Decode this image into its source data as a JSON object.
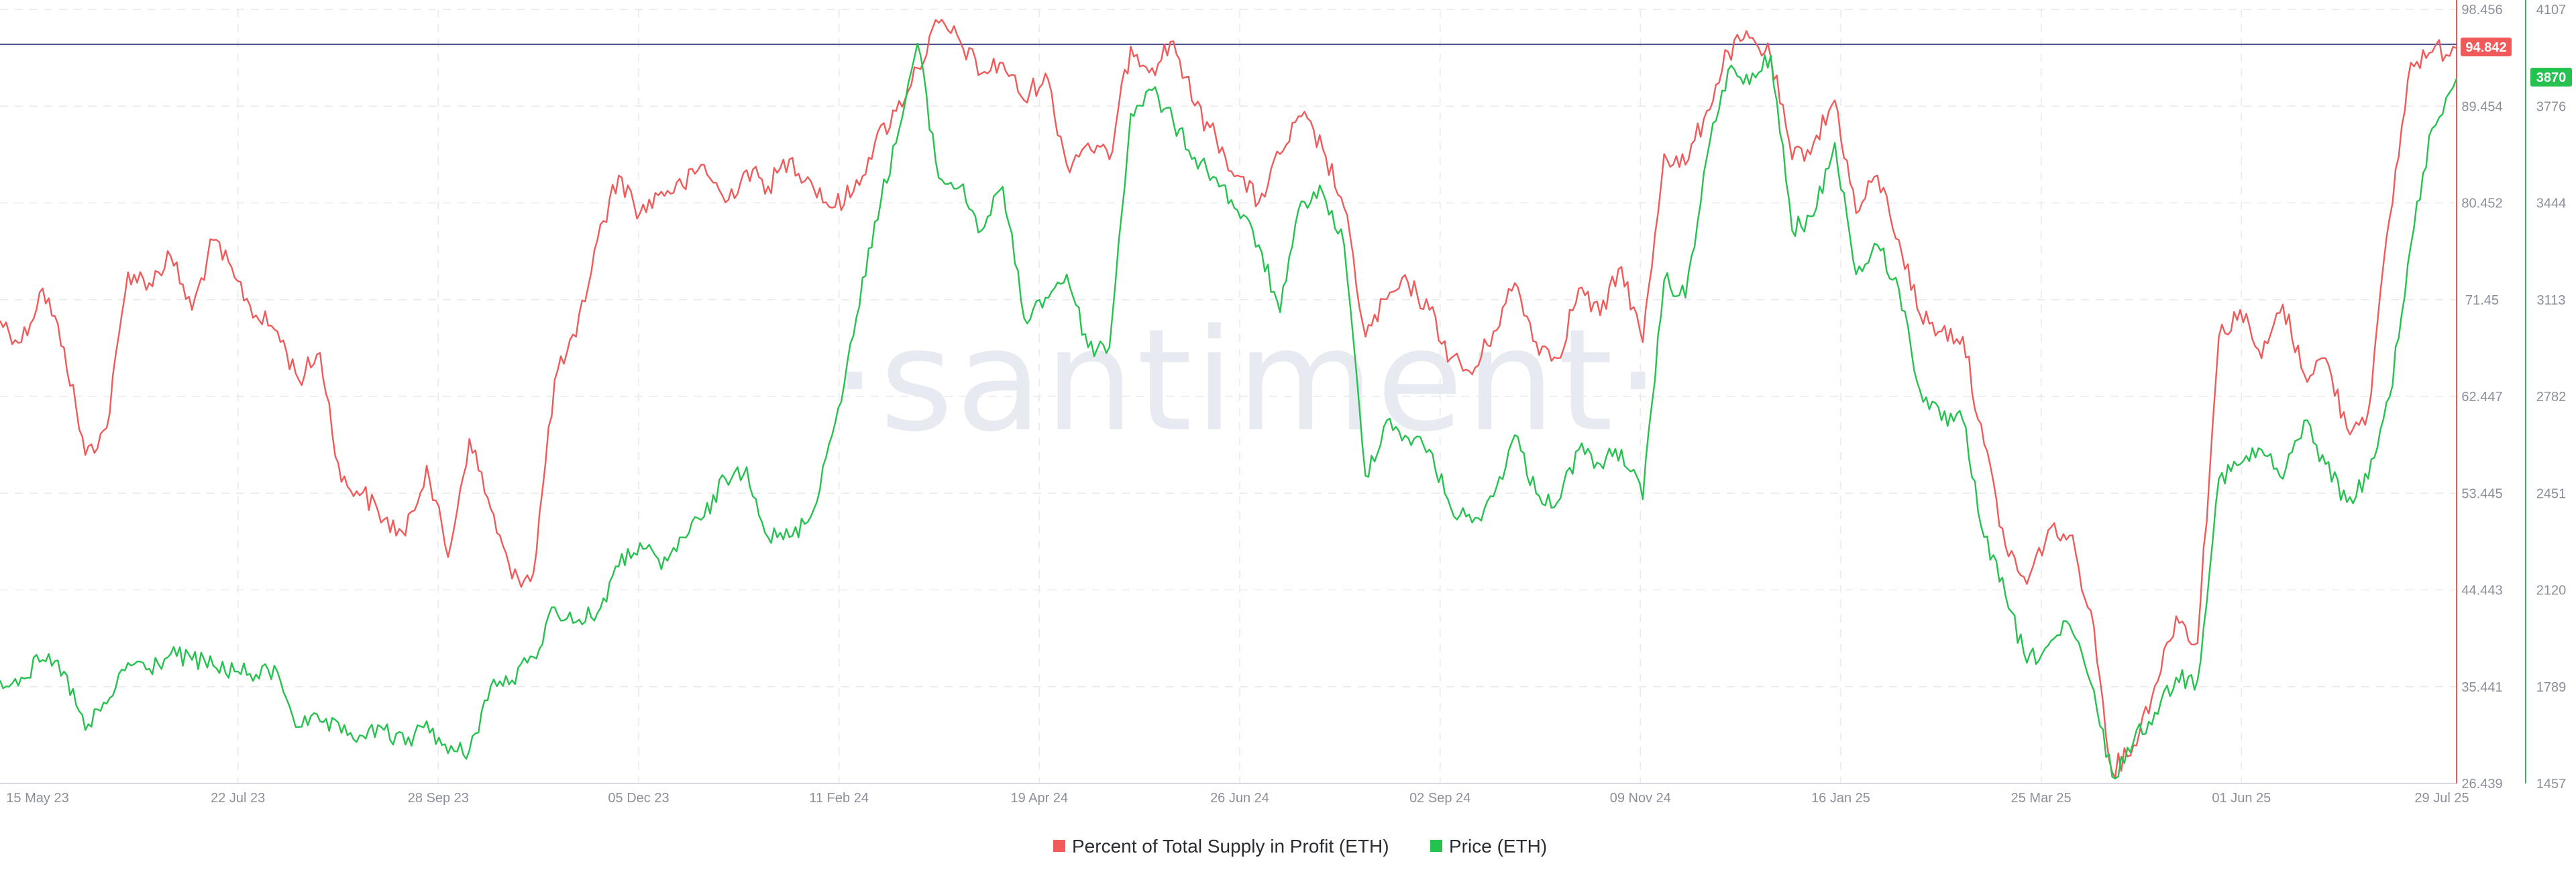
{
  "watermark": "·santiment·",
  "colors": {
    "profit": "#f05a5a",
    "price": "#26c24f",
    "reference_line": "#4a4f8a",
    "grid": "#e7e9ee",
    "axis_text": "#8a8f99"
  },
  "badges": {
    "profit_value": "94.842",
    "price_value": "3870"
  },
  "legend": [
    {
      "label": "Percent of Total Supply in Profit (ETH)",
      "color": "#f05a5a"
    },
    {
      "label": "Price (ETH)",
      "color": "#26c24f"
    }
  ],
  "chart_data": {
    "type": "line",
    "title": "",
    "x_tick_labels": [
      "15 May 23",
      "22 Jul 23",
      "28 Sep 23",
      "05 Dec 23",
      "11 Feb 24",
      "19 Apr 24",
      "26 Jun 24",
      "02 Sep 24",
      "09 Nov 24",
      "16 Jan 25",
      "25 Mar 25",
      "01 Jun 25",
      "29 Jul 25"
    ],
    "x_range": [
      "2023-05-15",
      "2025-07-29"
    ],
    "y_left": {
      "label": "",
      "range": [
        26.439,
        98.456
      ],
      "tick_labels": [
        "98.456",
        "89.454",
        "80.452",
        "71.45",
        "62.447",
        "53.445",
        "44.443",
        "35.441",
        "26.439"
      ]
    },
    "y_right": {
      "label": "",
      "range": [
        1457,
        4107
      ],
      "tick_labels": [
        "4107",
        "3776",
        "3444",
        "3113",
        "2782",
        "2451",
        "2120",
        "1789",
        "1457"
      ]
    },
    "reference_line": {
      "axis": "left",
      "value": 95.2
    },
    "grid": true,
    "legend_position": "bottom-center",
    "series": [
      {
        "name": "Percent of Total Supply in Profit (ETH)",
        "axis": "left",
        "points": [
          [
            "2023-05-15",
            69.5
          ],
          [
            "2023-05-22",
            67.5
          ],
          [
            "2023-05-29",
            72.5
          ],
          [
            "2023-06-05",
            67.0
          ],
          [
            "2023-06-12",
            57.0
          ],
          [
            "2023-06-19",
            59.5
          ],
          [
            "2023-06-26",
            74.0
          ],
          [
            "2023-07-03",
            73.0
          ],
          [
            "2023-07-10",
            75.5
          ],
          [
            "2023-07-17",
            70.5
          ],
          [
            "2023-07-24",
            77.0
          ],
          [
            "2023-07-31",
            73.5
          ],
          [
            "2023-08-07",
            70.0
          ],
          [
            "2023-08-14",
            68.5
          ],
          [
            "2023-08-21",
            64.0
          ],
          [
            "2023-08-28",
            66.5
          ],
          [
            "2023-09-04",
            54.5
          ],
          [
            "2023-09-11",
            53.5
          ],
          [
            "2023-09-18",
            51.0
          ],
          [
            "2023-09-25",
            49.5
          ],
          [
            "2023-10-02",
            56.0
          ],
          [
            "2023-10-09",
            47.5
          ],
          [
            "2023-10-16",
            58.5
          ],
          [
            "2023-10-23",
            52.0
          ],
          [
            "2023-10-30",
            45.5
          ],
          [
            "2023-11-06",
            46.0
          ],
          [
            "2023-11-13",
            64.0
          ],
          [
            "2023-11-20",
            68.0
          ],
          [
            "2023-11-27",
            77.0
          ],
          [
            "2023-12-04",
            83.0
          ],
          [
            "2023-12-11",
            79.5
          ],
          [
            "2023-12-18",
            81.5
          ],
          [
            "2023-12-25",
            82.0
          ],
          [
            "2024-01-01",
            84.0
          ],
          [
            "2024-01-08",
            80.5
          ],
          [
            "2024-01-15",
            83.5
          ],
          [
            "2024-01-22",
            82.0
          ],
          [
            "2024-01-29",
            84.5
          ],
          [
            "2024-02-05",
            82.5
          ],
          [
            "2024-02-12",
            80.0
          ],
          [
            "2024-02-19",
            81.5
          ],
          [
            "2024-02-26",
            86.0
          ],
          [
            "2024-03-04",
            89.0
          ],
          [
            "2024-03-11",
            93.0
          ],
          [
            "2024-03-18",
            97.2
          ],
          [
            "2024-03-25",
            95.5
          ],
          [
            "2024-04-01",
            92.5
          ],
          [
            "2024-04-08",
            93.5
          ],
          [
            "2024-04-15",
            90.0
          ],
          [
            "2024-04-22",
            92.5
          ],
          [
            "2024-04-29",
            84.0
          ],
          [
            "2024-05-06",
            86.0
          ],
          [
            "2024-05-13",
            84.5
          ],
          [
            "2024-05-20",
            95.0
          ],
          [
            "2024-05-27",
            93.0
          ],
          [
            "2024-06-03",
            95.5
          ],
          [
            "2024-06-10",
            89.5
          ],
          [
            "2024-06-17",
            86.5
          ],
          [
            "2024-06-24",
            83.0
          ],
          [
            "2024-07-01",
            80.5
          ],
          [
            "2024-07-08",
            85.0
          ],
          [
            "2024-07-15",
            88.5
          ],
          [
            "2024-07-22",
            85.5
          ],
          [
            "2024-07-29",
            80.0
          ],
          [
            "2024-08-05",
            68.0
          ],
          [
            "2024-08-12",
            71.5
          ],
          [
            "2024-08-19",
            73.0
          ],
          [
            "2024-08-26",
            70.5
          ],
          [
            "2024-09-02",
            66.0
          ],
          [
            "2024-09-09",
            64.5
          ],
          [
            "2024-09-16",
            68.5
          ],
          [
            "2024-09-23",
            73.0
          ],
          [
            "2024-09-30",
            67.5
          ],
          [
            "2024-10-07",
            66.0
          ],
          [
            "2024-10-14",
            72.5
          ],
          [
            "2024-10-21",
            70.0
          ],
          [
            "2024-10-28",
            74.5
          ],
          [
            "2024-11-04",
            67.5
          ],
          [
            "2024-11-11",
            85.0
          ],
          [
            "2024-11-18",
            84.0
          ],
          [
            "2024-11-25",
            89.0
          ],
          [
            "2024-12-02",
            94.5
          ],
          [
            "2024-12-09",
            95.8
          ],
          [
            "2024-12-16",
            94.0
          ],
          [
            "2024-12-23",
            84.5
          ],
          [
            "2024-12-30",
            86.0
          ],
          [
            "2025-01-06",
            90.0
          ],
          [
            "2025-01-13",
            79.5
          ],
          [
            "2025-01-20",
            83.0
          ],
          [
            "2025-01-27",
            77.0
          ],
          [
            "2025-02-03",
            70.0
          ],
          [
            "2025-02-10",
            68.5
          ],
          [
            "2025-02-17",
            68.0
          ],
          [
            "2025-02-24",
            58.0
          ],
          [
            "2025-03-03",
            48.5
          ],
          [
            "2025-03-10",
            45.0
          ],
          [
            "2025-03-17",
            50.0
          ],
          [
            "2025-03-24",
            49.5
          ],
          [
            "2025-03-31",
            42.5
          ],
          [
            "2025-04-07",
            27.5
          ],
          [
            "2025-04-14",
            30.0
          ],
          [
            "2025-04-21",
            35.5
          ],
          [
            "2025-04-28",
            42.0
          ],
          [
            "2025-05-05",
            39.5
          ],
          [
            "2025-05-12",
            68.0
          ],
          [
            "2025-05-19",
            70.5
          ],
          [
            "2025-05-26",
            66.0
          ],
          [
            "2025-06-02",
            71.0
          ],
          [
            "2025-06-09",
            64.5
          ],
          [
            "2025-06-16",
            66.0
          ],
          [
            "2025-06-23",
            59.5
          ],
          [
            "2025-06-30",
            61.0
          ],
          [
            "2025-07-07",
            79.0
          ],
          [
            "2025-07-14",
            93.5
          ],
          [
            "2025-07-21",
            94.5
          ],
          [
            "2025-07-29",
            94.842
          ]
        ]
      },
      {
        "name": "Price (ETH)",
        "axis": "right",
        "points": [
          [
            "2023-05-15",
            1810
          ],
          [
            "2023-05-22",
            1820
          ],
          [
            "2023-05-29",
            1880
          ],
          [
            "2023-06-05",
            1840
          ],
          [
            "2023-06-12",
            1640
          ],
          [
            "2023-06-19",
            1730
          ],
          [
            "2023-06-26",
            1870
          ],
          [
            "2023-07-03",
            1850
          ],
          [
            "2023-07-10",
            1900
          ],
          [
            "2023-07-17",
            1880
          ],
          [
            "2023-07-24",
            1860
          ],
          [
            "2023-07-31",
            1840
          ],
          [
            "2023-08-07",
            1830
          ],
          [
            "2023-08-14",
            1840
          ],
          [
            "2023-08-21",
            1650
          ],
          [
            "2023-08-28",
            1670
          ],
          [
            "2023-09-04",
            1630
          ],
          [
            "2023-09-11",
            1620
          ],
          [
            "2023-09-18",
            1640
          ],
          [
            "2023-09-25",
            1590
          ],
          [
            "2023-10-02",
            1670
          ],
          [
            "2023-10-09",
            1560
          ],
          [
            "2023-10-16",
            1570
          ],
          [
            "2023-10-23",
            1790
          ],
          [
            "2023-10-30",
            1810
          ],
          [
            "2023-11-06",
            1890
          ],
          [
            "2023-11-13",
            2060
          ],
          [
            "2023-11-20",
            2010
          ],
          [
            "2023-11-27",
            2040
          ],
          [
            "2023-12-04",
            2200
          ],
          [
            "2023-12-11",
            2280
          ],
          [
            "2023-12-18",
            2190
          ],
          [
            "2023-12-25",
            2300
          ],
          [
            "2024-01-01",
            2370
          ],
          [
            "2024-01-08",
            2500
          ],
          [
            "2024-01-15",
            2540
          ],
          [
            "2024-01-22",
            2300
          ],
          [
            "2024-01-29",
            2300
          ],
          [
            "2024-02-05",
            2370
          ],
          [
            "2024-02-12",
            2650
          ],
          [
            "2024-02-19",
            2990
          ],
          [
            "2024-02-26",
            3380
          ],
          [
            "2024-03-04",
            3650
          ],
          [
            "2024-03-11",
            3990
          ],
          [
            "2024-03-18",
            3530
          ],
          [
            "2024-03-25",
            3500
          ],
          [
            "2024-04-01",
            3350
          ],
          [
            "2024-04-08",
            3500
          ],
          [
            "2024-04-15",
            3050
          ],
          [
            "2024-04-22",
            3120
          ],
          [
            "2024-04-29",
            3200
          ],
          [
            "2024-05-06",
            2950
          ],
          [
            "2024-05-13",
            2950
          ],
          [
            "2024-05-20",
            3750
          ],
          [
            "2024-05-27",
            3830
          ],
          [
            "2024-06-03",
            3720
          ],
          [
            "2024-06-10",
            3600
          ],
          [
            "2024-06-17",
            3530
          ],
          [
            "2024-06-24",
            3420
          ],
          [
            "2024-07-01",
            3300
          ],
          [
            "2024-07-08",
            3070
          ],
          [
            "2024-07-15",
            3450
          ],
          [
            "2024-07-22",
            3480
          ],
          [
            "2024-07-29",
            3300
          ],
          [
            "2024-08-05",
            2510
          ],
          [
            "2024-08-12",
            2700
          ],
          [
            "2024-08-19",
            2640
          ],
          [
            "2024-08-26",
            2600
          ],
          [
            "2024-09-02",
            2400
          ],
          [
            "2024-09-09",
            2350
          ],
          [
            "2024-09-16",
            2440
          ],
          [
            "2024-09-23",
            2650
          ],
          [
            "2024-09-30",
            2450
          ],
          [
            "2024-10-07",
            2420
          ],
          [
            "2024-10-14",
            2600
          ],
          [
            "2024-10-21",
            2550
          ],
          [
            "2024-10-28",
            2600
          ],
          [
            "2024-11-04",
            2430
          ],
          [
            "2024-11-11",
            3180
          ],
          [
            "2024-11-18",
            3120
          ],
          [
            "2024-11-25",
            3600
          ],
          [
            "2024-12-02",
            3900
          ],
          [
            "2024-12-09",
            3850
          ],
          [
            "2024-12-16",
            3950
          ],
          [
            "2024-12-23",
            3350
          ],
          [
            "2024-12-30",
            3400
          ],
          [
            "2025-01-06",
            3650
          ],
          [
            "2025-01-13",
            3200
          ],
          [
            "2025-01-20",
            3300
          ],
          [
            "2025-01-27",
            3150
          ],
          [
            "2025-02-03",
            2800
          ],
          [
            "2025-02-10",
            2700
          ],
          [
            "2025-02-17",
            2700
          ],
          [
            "2025-02-24",
            2300
          ],
          [
            "2025-03-03",
            2100
          ],
          [
            "2025-03-10",
            1870
          ],
          [
            "2025-03-17",
            1930
          ],
          [
            "2025-03-24",
            2000
          ],
          [
            "2025-03-31",
            1800
          ],
          [
            "2025-04-07",
            1480
          ],
          [
            "2025-04-14",
            1600
          ],
          [
            "2025-04-21",
            1700
          ],
          [
            "2025-04-28",
            1820
          ],
          [
            "2025-05-05",
            1810
          ],
          [
            "2025-05-12",
            2500
          ],
          [
            "2025-05-19",
            2550
          ],
          [
            "2025-05-26",
            2600
          ],
          [
            "2025-06-02",
            2500
          ],
          [
            "2025-06-09",
            2700
          ],
          [
            "2025-06-16",
            2550
          ],
          [
            "2025-06-23",
            2420
          ],
          [
            "2025-06-30",
            2500
          ],
          [
            "2025-07-07",
            2780
          ],
          [
            "2025-07-14",
            3300
          ],
          [
            "2025-07-21",
            3700
          ],
          [
            "2025-07-29",
            3870
          ]
        ]
      }
    ]
  }
}
